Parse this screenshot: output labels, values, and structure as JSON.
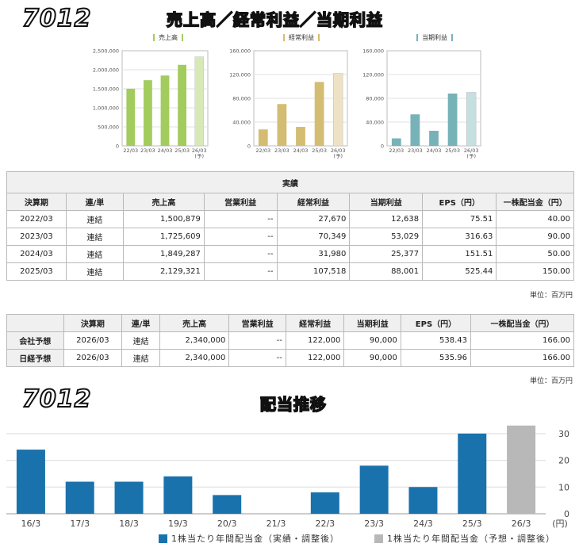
{
  "header": {
    "code": "7012",
    "title": "売上高／経常利益／当期利益"
  },
  "mini_charts": [
    {
      "legend": "売上高",
      "color": "#a3cc5e",
      "last_color": "#d7eab5",
      "y_ticks": [
        "2,500,000",
        "2,000,000",
        "1,500,000",
        "1,000,000",
        "500,000",
        "0"
      ],
      "ymax": 2500000,
      "x_labels": [
        "22/03",
        "23/03",
        "24/03",
        "25/03",
        "26/03"
      ],
      "last_sub": "(予)",
      "values": [
        1500879,
        1725609,
        1849287,
        2129321,
        2340000
      ]
    },
    {
      "legend": "経常利益",
      "color": "#d4bd73",
      "last_color": "#ede3c4",
      "y_ticks": [
        "160,000",
        "120,000",
        "80,000",
        "40,000",
        "0"
      ],
      "ymax": 160000,
      "x_labels": [
        "22/03",
        "23/03",
        "24/03",
        "25/03",
        "26/03"
      ],
      "last_sub": "(予)",
      "values": [
        27670,
        70349,
        31980,
        107518,
        122000
      ]
    },
    {
      "legend": "当期利益",
      "color": "#78b2b9",
      "last_color": "#c6dfe1",
      "y_ticks": [
        "160,000",
        "120,000",
        "80,000",
        "40,000",
        "0"
      ],
      "ymax": 160000,
      "x_labels": [
        "22/03",
        "23/03",
        "24/03",
        "25/03",
        "26/03"
      ],
      "last_sub": "(予)",
      "values": [
        12638,
        53029,
        25377,
        88001,
        90000
      ]
    }
  ],
  "results_table": {
    "group_header": "実績",
    "headers": [
      "決算期",
      "連/単",
      "売上高",
      "営業利益",
      "経常利益",
      "当期利益",
      "EPS（円）",
      "一株配当金（円）"
    ],
    "rows": [
      [
        "2022/03",
        "連結",
        "1,500,879",
        "--",
        "27,670",
        "12,638",
        "75.51",
        "40.00"
      ],
      [
        "2023/03",
        "連結",
        "1,725,609",
        "--",
        "70,349",
        "53,029",
        "316.63",
        "90.00"
      ],
      [
        "2024/03",
        "連結",
        "1,849,287",
        "--",
        "31,980",
        "25,377",
        "151.51",
        "50.00"
      ],
      [
        "2025/03",
        "連結",
        "2,129,321",
        "--",
        "107,518",
        "88,001",
        "525.44",
        "150.00"
      ]
    ],
    "unit": "単位：百万円"
  },
  "forecast_table": {
    "headers": [
      "決算期",
      "連/単",
      "売上高",
      "営業利益",
      "経常利益",
      "当期利益",
      "EPS（円）",
      "一株配当金（円）"
    ],
    "rows": [
      [
        "会社予想",
        "2026/03",
        "連結",
        "2,340,000",
        "--",
        "122,000",
        "90,000",
        "538.43",
        "166.00"
      ],
      [
        "日経予想",
        "2026/03",
        "連結",
        "2,340,000",
        "--",
        "122,000",
        "90,000",
        "535.96",
        "166.00"
      ]
    ],
    "unit": "単位：百万円"
  },
  "dividend": {
    "code": "7012",
    "title": "配当推移",
    "legend_actual": "1株当たり年間配当金（実績・調整後）",
    "legend_forecast": "1株当たり年間配当金（予想・調整後）",
    "unit_label": "(円)"
  },
  "chart_data": [
    {
      "type": "bar",
      "title": "売上高",
      "categories": [
        "22/03",
        "23/03",
        "24/03",
        "25/03",
        "26/03 (予)"
      ],
      "values": [
        1500879,
        1725609,
        1849287,
        2129321,
        2340000
      ],
      "ylim": [
        0,
        2500000
      ]
    },
    {
      "type": "bar",
      "title": "経常利益",
      "categories": [
        "22/03",
        "23/03",
        "24/03",
        "25/03",
        "26/03 (予)"
      ],
      "values": [
        27670,
        70349,
        31980,
        107518,
        122000
      ],
      "ylim": [
        0,
        160000
      ]
    },
    {
      "type": "bar",
      "title": "当期利益",
      "categories": [
        "22/03",
        "23/03",
        "24/03",
        "25/03",
        "26/03 (予)"
      ],
      "values": [
        12638,
        53029,
        25377,
        88001,
        90000
      ],
      "ylim": [
        0,
        160000
      ]
    },
    {
      "type": "bar",
      "title": "配当推移",
      "categories": [
        "16/3",
        "17/3",
        "18/3",
        "19/3",
        "20/3",
        "21/3",
        "22/3",
        "23/3",
        "24/3",
        "25/3",
        "26/3"
      ],
      "values": [
        24,
        12,
        12,
        14,
        7,
        0,
        8,
        18,
        10,
        30,
        33
      ],
      "forecast_index": 10,
      "colors": {
        "actual": "#1a72ad",
        "forecast": "#b8b8b8"
      },
      "y_ticks": [
        "0",
        "10",
        "20",
        "30"
      ],
      "ylim": [
        0,
        35
      ],
      "grid": true
    }
  ]
}
